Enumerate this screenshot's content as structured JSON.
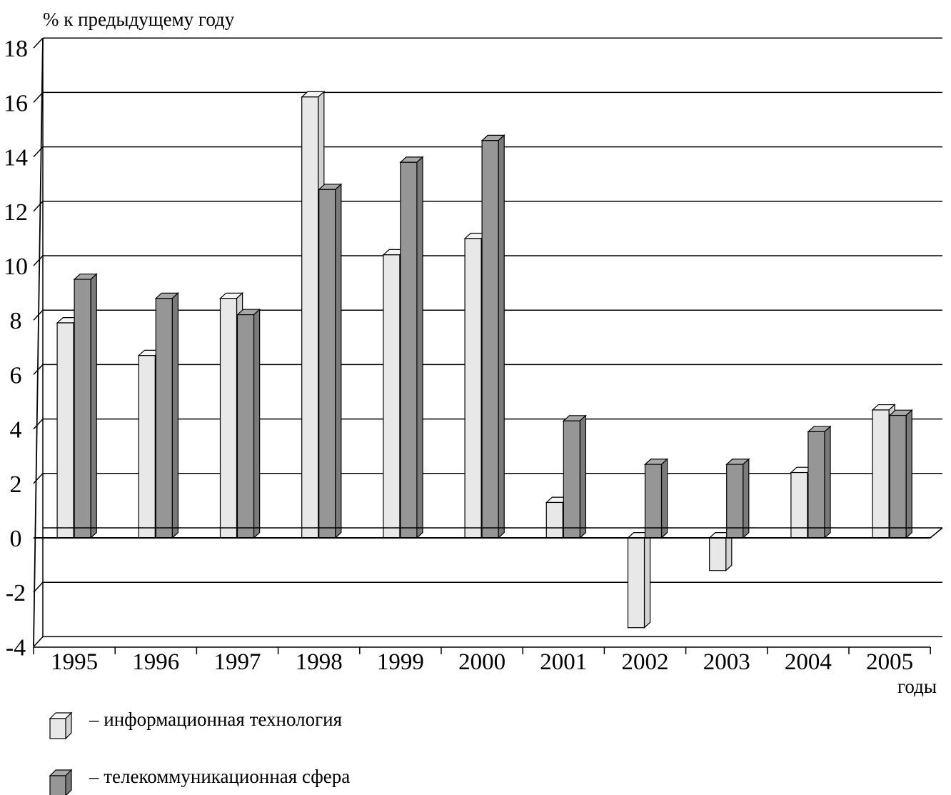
{
  "chart_data": {
    "type": "bar",
    "ylabel": "% к предыдущему году",
    "xlabel": "годы",
    "categories": [
      "1995",
      "1996",
      "1997",
      "1998",
      "1999",
      "2000",
      "2001",
      "2002",
      "2003",
      "2004",
      "2005"
    ],
    "series": [
      {
        "name": "– информационная технология",
        "color": "#e8e8e8",
        "values": [
          7.9,
          6.7,
          8.8,
          16.2,
          10.4,
          11.0,
          1.3,
          -3.3,
          -1.2,
          2.4,
          4.7
        ]
      },
      {
        "name": "– телекоммуникационная сфера",
        "color": "#969696",
        "values": [
          9.5,
          8.8,
          8.2,
          12.8,
          13.8,
          14.6,
          4.3,
          2.7,
          2.7,
          3.9,
          4.5
        ]
      }
    ],
    "ylim": [
      -4,
      18
    ],
    "yticks": [
      "18",
      "16",
      "14",
      "12",
      "10",
      "8",
      "6",
      "4",
      "2",
      "0",
      "-2",
      "-4"
    ],
    "ytick_values": [
      18,
      16,
      14,
      12,
      10,
      8,
      6,
      4,
      2,
      0,
      -2,
      -4
    ],
    "grid": true,
    "legend_position": "bottom-left"
  }
}
